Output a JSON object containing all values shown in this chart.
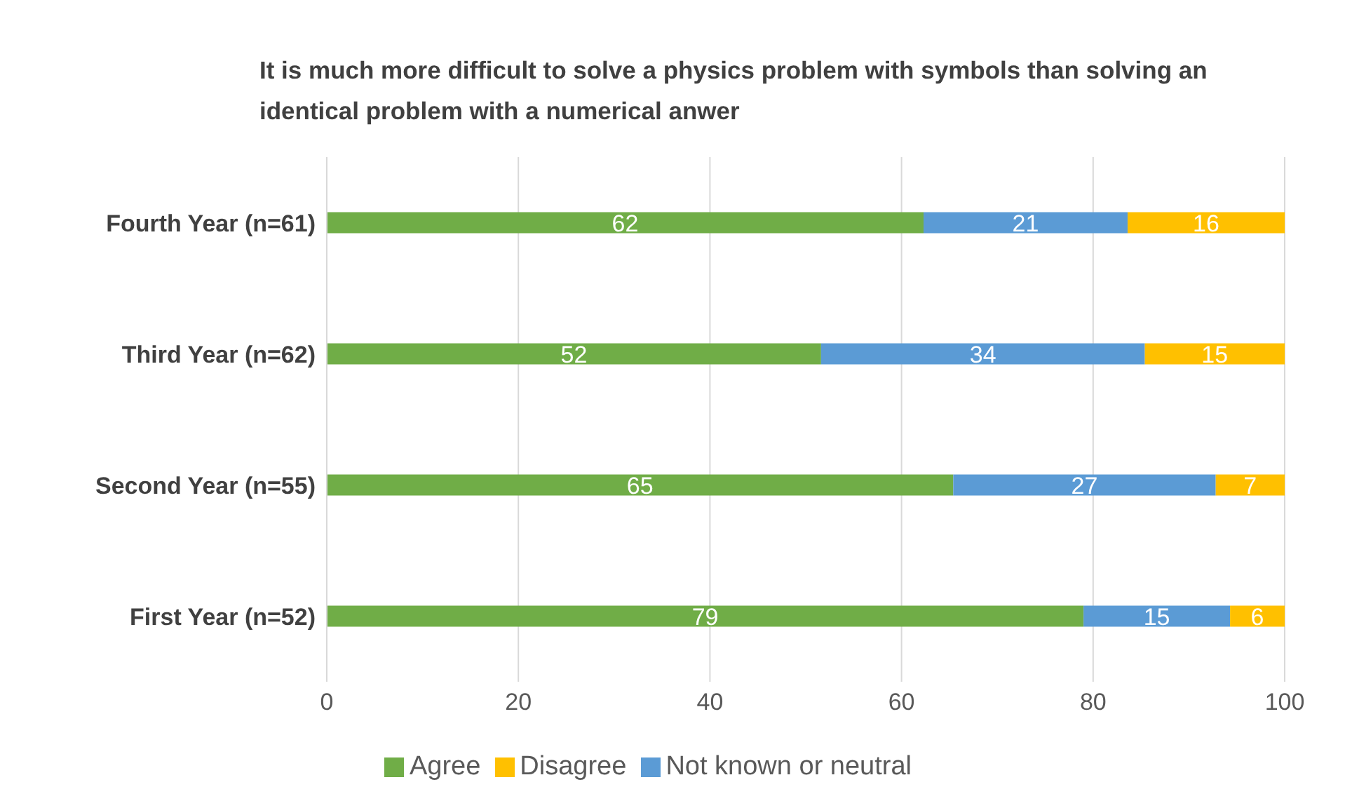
{
  "chart_data": {
    "type": "bar",
    "orientation": "horizontal",
    "stacked": true,
    "title": "It is much more difficult to solve a physics problem with symbols than solving an identical problem with a numerical anwer",
    "categories": [
      "Fourth Year (n=61)",
      "Third Year (n=62)",
      "Second Year (n=55)",
      "First Year (n=52)"
    ],
    "series": [
      {
        "name": "Agree",
        "color": "#70ad47",
        "values": [
          62.3,
          51.6,
          65.4,
          79.0
        ],
        "value_labels": [
          "62",
          "52",
          "65",
          "79"
        ]
      },
      {
        "name": "Not known or neutral",
        "color": "#5b9bd5",
        "values": [
          21.3,
          33.8,
          27.4,
          15.3
        ],
        "value_labels": [
          "21",
          "34",
          "27",
          "15"
        ]
      },
      {
        "name": "Disagree",
        "color": "#ffc000",
        "values": [
          16.4,
          14.6,
          7.2,
          5.7
        ],
        "value_labels": [
          "16",
          "15",
          "7",
          "6"
        ]
      }
    ],
    "xlim": [
      0,
      100
    ],
    "xticks": [
      0,
      20,
      40,
      60,
      80,
      100
    ],
    "grid": "x",
    "legend": "bottom"
  }
}
